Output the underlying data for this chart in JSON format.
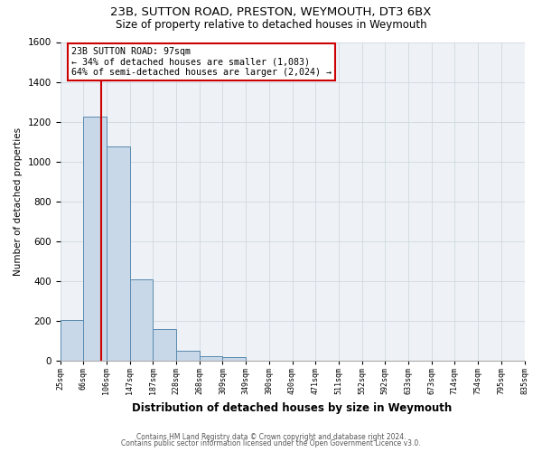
{
  "title": "23B, SUTTON ROAD, PRESTON, WEYMOUTH, DT3 6BX",
  "subtitle": "Size of property relative to detached houses in Weymouth",
  "xlabel": "Distribution of detached houses by size in Weymouth",
  "ylabel": "Number of detached properties",
  "footnote1": "Contains HM Land Registry data © Crown copyright and database right 2024.",
  "footnote2": "Contains public sector information licensed under the Open Government Licence v3.0.",
  "bin_labels": [
    "25sqm",
    "66sqm",
    "106sqm",
    "147sqm",
    "187sqm",
    "228sqm",
    "268sqm",
    "309sqm",
    "349sqm",
    "390sqm",
    "430sqm",
    "471sqm",
    "511sqm",
    "552sqm",
    "592sqm",
    "633sqm",
    "673sqm",
    "714sqm",
    "754sqm",
    "795sqm",
    "835sqm"
  ],
  "bar_values": [
    205,
    1225,
    1075,
    410,
    160,
    52,
    25,
    20,
    0,
    0,
    0,
    0,
    0,
    0,
    0,
    0,
    0,
    0,
    0,
    0
  ],
  "bar_color": "#c8d8e8",
  "bar_edge_color": "#5a8ab0",
  "annotation_box_text": "23B SUTTON ROAD: 97sqm\n← 34% of detached houses are smaller (1,083)\n64% of semi-detached houses are larger (2,024) →",
  "ylim": [
    0,
    1600
  ],
  "yticks": [
    0,
    200,
    400,
    600,
    800,
    1000,
    1200,
    1400,
    1600
  ],
  "grid_color": "#d0d8e0",
  "bg_color": "#eef2f6",
  "title_fontsize": 9.5,
  "subtitle_fontsize": 8.5,
  "red_line_color": "#cc0000"
}
